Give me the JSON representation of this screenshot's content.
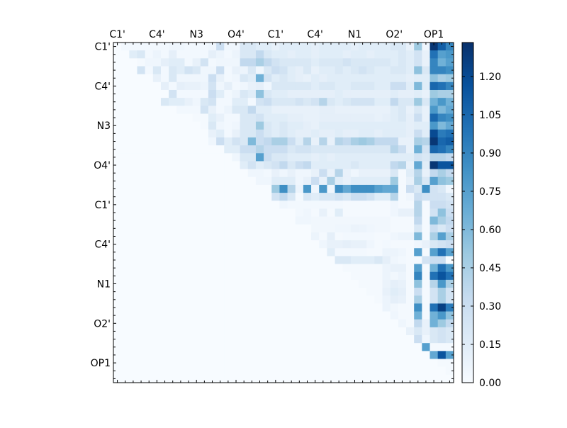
{
  "chart_data": {
    "type": "heatmap",
    "title": "",
    "xlabel": "",
    "ylabel": "",
    "n": 43,
    "x_tick_labels": [
      "C1'",
      "C4'",
      "N3",
      "O4'",
      "C1'",
      "C4'",
      "N1",
      "O2'",
      "OP1"
    ],
    "y_tick_labels": [
      "C1'",
      "C4'",
      "N3",
      "O4'",
      "C1'",
      "C4'",
      "N1",
      "O2'",
      "OP1"
    ],
    "tick_label_every": 5,
    "colormap": "Blues",
    "colormap_stops": [
      "#f7fbff",
      "#deebf7",
      "#c6dbef",
      "#9ecae1",
      "#6baed6",
      "#4292c6",
      "#2171b5",
      "#08519c",
      "#08306b"
    ],
    "vmin": 0,
    "vmax": 1.333,
    "colorbar_ticks": [
      "0.00",
      "0.15",
      "0.30",
      "0.45",
      "0.60",
      "0.75",
      "0.90",
      "1.05",
      "1.20"
    ],
    "rows_right_aligned": [
      [
        0,
        0.03,
        0.03,
        0.03,
        0.03,
        0.03,
        0.03,
        0.05,
        0.05,
        0.03,
        0.03,
        0.03,
        0.05,
        0.3,
        0.05,
        0.05,
        0.2,
        0.2,
        0.15,
        0.15,
        0.1,
        0.15,
        0.15,
        0.15,
        0.15,
        0.12,
        0.15,
        0.15,
        0.15,
        0.15,
        0.12,
        0.15,
        0.15,
        0.15,
        0.15,
        0.2,
        0.2,
        0.1,
        0.5,
        0.05,
        1.3,
        1.1,
        0.9
      ],
      [
        0.15,
        0.2,
        0.03,
        0.07,
        0.03,
        0.12,
        0.03,
        0.03,
        0.03,
        0.03,
        0.12,
        0.07,
        0.03,
        0.07,
        0.2,
        0.2,
        0.35,
        0.2,
        0.15,
        0.15,
        0.12,
        0.15,
        0.15,
        0.12,
        0.15,
        0.15,
        0.15,
        0.12,
        0.15,
        0.15,
        0.12,
        0.15,
        0.15,
        0.15,
        0.2,
        0.15,
        0.25,
        0.1,
        1.0,
        0.75,
        0.8
      ],
      [
        0.02,
        0.05,
        0.05,
        0.12,
        0.15,
        0.15,
        0.03,
        0.1,
        0.25,
        0.03,
        0.05,
        0.05,
        0.05,
        0.35,
        0.35,
        0.45,
        0.35,
        0.25,
        0.2,
        0.2,
        0.2,
        0.2,
        0.15,
        0.2,
        0.2,
        0.2,
        0.25,
        0.2,
        0.2,
        0.2,
        0.2,
        0.2,
        0.15,
        0.2,
        0.15,
        0.25,
        0.1,
        0.9,
        0.65,
        0.75
      ],
      [
        0.25,
        0.03,
        0.2,
        0.03,
        0.2,
        0.15,
        0.25,
        0.2,
        0.05,
        0.05,
        0.3,
        0.03,
        0.1,
        0.07,
        0.2,
        0.05,
        0.2,
        0.3,
        0.25,
        0.15,
        0.12,
        0.2,
        0.1,
        0.15,
        0.15,
        0.2,
        0.15,
        0.2,
        0.25,
        0.2,
        0.15,
        0.15,
        0.2,
        0.2,
        0.15,
        0.55,
        0.2,
        0.9,
        0.9,
        0.85
      ],
      [
        0.1,
        0.03,
        0.2,
        0.05,
        0.05,
        0.05,
        0.05,
        0.3,
        0.1,
        0.03,
        0.05,
        0.2,
        0.15,
        0.65,
        0.25,
        0.15,
        0.2,
        0.15,
        0.12,
        0.1,
        0.15,
        0.12,
        0.15,
        0.15,
        0.15,
        0.15,
        0.15,
        0.15,
        0.15,
        0.15,
        0.15,
        0.15,
        0.12,
        0.15,
        0.15,
        0.55,
        0.45,
        0.5
      ],
      [
        0.12,
        0.03,
        0.12,
        0.1,
        0.1,
        0.07,
        0.25,
        0.05,
        0.12,
        0.03,
        0.05,
        0.1,
        0.12,
        0.05,
        0.2,
        0.2,
        0.2,
        0.2,
        0.2,
        0.15,
        0.2,
        0.2,
        0.15,
        0.15,
        0.2,
        0.2,
        0.2,
        0.15,
        0.15,
        0.3,
        0.3,
        0.15,
        0.6,
        0.15,
        1.05,
        1.0,
        0.9
      ],
      [
        0.25,
        0.03,
        0.03,
        0.03,
        0.03,
        0.3,
        0.15,
        0.03,
        0.07,
        0.2,
        0.15,
        0.55,
        0.2,
        0.15,
        0.15,
        0.12,
        0.12,
        0.12,
        0.12,
        0.12,
        0.12,
        0.15,
        0.12,
        0.12,
        0.12,
        0.12,
        0.12,
        0.12,
        0.15,
        0.12,
        0.12,
        0.15,
        0.1,
        0.5,
        0.45,
        0.45
      ],
      [
        0.2,
        0.15,
        0.15,
        0.1,
        0.05,
        0.2,
        0.25,
        0.03,
        0.03,
        0.15,
        0.15,
        0.03,
        0.25,
        0.3,
        0.2,
        0.2,
        0.2,
        0.25,
        0.2,
        0.25,
        0.4,
        0.2,
        0.15,
        0.2,
        0.25,
        0.25,
        0.25,
        0.15,
        0.15,
        0.35,
        0.2,
        0.2,
        0.5,
        0.2,
        0.65,
        0.8,
        0.65
      ],
      [
        0.03,
        0.03,
        0.03,
        0.25,
        0.1,
        0.03,
        0.07,
        0.2,
        0.2,
        0.35,
        0.15,
        0.15,
        0.1,
        0.1,
        0.1,
        0.1,
        0.1,
        0.1,
        0.12,
        0.12,
        0.1,
        0.1,
        0.1,
        0.1,
        0.1,
        0.1,
        0.1,
        0.15,
        0.2,
        0.1,
        0.2,
        0.1,
        0.8,
        0.6,
        0.7
      ],
      [
        0.02,
        0.02,
        0.15,
        0.1,
        0.03,
        0.03,
        0.2,
        0.2,
        0.25,
        0.15,
        0.15,
        0.15,
        0.12,
        0.12,
        0.1,
        0.1,
        0.12,
        0.12,
        0.12,
        0.12,
        0.12,
        0.12,
        0.12,
        0.1,
        0.12,
        0.15,
        0.2,
        0.12,
        0.3,
        0.1,
        1.05,
        0.9,
        0.85
      ],
      [
        0.02,
        0.2,
        0.05,
        0.03,
        0.05,
        0.2,
        0.2,
        0.5,
        0.2,
        0.15,
        0.2,
        0.15,
        0.15,
        0.12,
        0.1,
        0.15,
        0.15,
        0.15,
        0.15,
        0.15,
        0.15,
        0.15,
        0.15,
        0.15,
        0.15,
        0.15,
        0.12,
        0.15,
        0.15,
        0.8,
        0.6,
        0.7
      ],
      [
        0.1,
        0.15,
        0.03,
        0.1,
        0.2,
        0.2,
        0.3,
        0.2,
        0.15,
        0.2,
        0.15,
        0.12,
        0.12,
        0.15,
        0.12,
        0.12,
        0.15,
        0.12,
        0.12,
        0.15,
        0.15,
        0.12,
        0.15,
        0.15,
        0.15,
        0.12,
        0.3,
        0.15,
        1.2,
        0.95,
        1.0
      ],
      [
        0.05,
        0.3,
        0.15,
        0.25,
        0.2,
        0.6,
        0.3,
        0.35,
        0.45,
        0.45,
        0.3,
        0.15,
        0.4,
        0.1,
        0.4,
        0.1,
        0.4,
        0.35,
        0.45,
        0.5,
        0.45,
        0.35,
        0.35,
        0.35,
        0.1,
        0.1,
        0.45,
        0.4,
        1.3,
        1.05,
        1.1
      ],
      [
        0.15,
        0.15,
        0.3,
        0.3,
        0.4,
        0.3,
        0.3,
        0.3,
        0.2,
        0.25,
        0.25,
        0.2,
        0.2,
        0.2,
        0.2,
        0.2,
        0.2,
        0.2,
        0.2,
        0.2,
        0.2,
        0.4,
        0.3,
        0.1,
        0.65,
        0.25,
        1.05,
        1.0,
        0.9
      ],
      [
        0.05,
        0.2,
        0.2,
        0.75,
        0.3,
        0.2,
        0.2,
        0.15,
        0.15,
        0.15,
        0.12,
        0.15,
        0.12,
        0.15,
        0.15,
        0.15,
        0.15,
        0.15,
        0.15,
        0.15,
        0.15,
        0.15,
        0.15,
        0.25,
        0.2,
        0.4,
        0.4,
        0.35
      ],
      [
        0.15,
        0.25,
        0.15,
        0.2,
        0.25,
        0.35,
        0.2,
        0.3,
        0.35,
        0.15,
        0.15,
        0.15,
        0.15,
        0.15,
        0.2,
        0.15,
        0.15,
        0.15,
        0.15,
        0.35,
        0.4,
        0.1,
        0.7,
        0.15,
        1.3,
        1.15,
        1.15
      ],
      [
        0.05,
        0.05,
        0.03,
        0.1,
        0.05,
        0.1,
        0.05,
        0.05,
        0.1,
        0.3,
        0.1,
        0.4,
        0.1,
        0.05,
        0.1,
        0.1,
        0.1,
        0.1,
        0.2,
        0.02,
        0.15,
        0.4,
        0.1,
        0.35,
        0.45,
        0.35
      ],
      [
        0.05,
        0.05,
        0.15,
        0.15,
        0.15,
        0.05,
        0.1,
        0.3,
        0.1,
        0.45,
        0.15,
        0.1,
        0.15,
        0.15,
        0.15,
        0.15,
        0.15,
        0.5,
        0.02,
        0.1,
        0.45,
        0.2,
        0.75,
        0.55,
        0.5
      ],
      [
        0,
        0.5,
        0.85,
        0.4,
        0.07,
        0.8,
        0.05,
        0.8,
        0.05,
        0.85,
        0.7,
        0.85,
        0.85,
        0.85,
        0.75,
        0.7,
        0.7,
        0.02,
        0.3,
        0.2,
        0.85,
        0.25,
        0.2,
        0.05
      ],
      [
        0.25,
        0.35,
        0.2,
        0.02,
        0.2,
        0.15,
        0.2,
        0.2,
        0.25,
        0.2,
        0.3,
        0.3,
        0.25,
        0.15,
        0.15,
        0.4,
        0.02,
        0.05,
        0.3,
        0.25,
        0.25,
        0.25,
        0.2
      ],
      [
        0.05,
        0.03,
        0.03,
        0.03,
        0.03,
        0.03,
        0.03,
        0.03,
        0.02,
        0.02,
        0.02,
        0.02,
        0.02,
        0.02,
        0.05,
        0.02,
        0.02,
        0.4,
        0.02,
        0.3,
        0.3,
        0.25
      ],
      [
        0.03,
        0.05,
        0.02,
        0.1,
        0.02,
        0.15,
        0.02,
        0.02,
        0.02,
        0.02,
        0.02,
        0.02,
        0.05,
        0.1,
        0.1,
        0.4,
        0.02,
        0.25,
        0.55,
        0.3
      ],
      [
        0.05,
        0.05,
        0.04,
        0.04,
        0.04,
        0.04,
        0.04,
        0.04,
        0.04,
        0.04,
        0.04,
        0.04,
        0.02,
        0.02,
        0.02,
        0.35,
        0.02,
        0.6,
        0.45,
        0.35
      ],
      [
        0.04,
        0.04,
        0.04,
        0.05,
        0.05,
        0.08,
        0.07,
        0.05,
        0.04,
        0.04,
        0.02,
        0.02,
        0.02,
        0.2,
        0.02,
        0.3,
        0.2,
        0.3
      ],
      [
        0.07,
        0.02,
        0.12,
        0.02,
        0.03,
        0.03,
        0.03,
        0.03,
        0.02,
        0.02,
        0.05,
        0.07,
        0.07,
        0.6,
        0.02,
        0.45,
        0.75,
        0.45
      ],
      [
        0.05,
        0.1,
        0.1,
        0.12,
        0.1,
        0.1,
        0.05,
        0.02,
        0.03,
        0.02,
        0.02,
        0.02,
        0.05,
        0.1,
        0.2,
        0.25,
        0.3
      ],
      [
        0.15,
        0.03,
        0.03,
        0.03,
        0.03,
        0.02,
        0.02,
        0.07,
        0.07,
        0.05,
        0.02,
        0.75,
        0.02,
        0.75,
        1.0,
        0.75
      ],
      [
        0.2,
        0.2,
        0.15,
        0.15,
        0.15,
        0.2,
        0.12,
        0.05,
        0.03,
        0.02,
        0.02,
        0.25,
        0.3,
        0.3,
        0
      ],
      [
        0.02,
        0.02,
        0.02,
        0.02,
        0.02,
        0.07,
        0.1,
        0.1,
        0.02,
        0.75,
        0.02,
        0.65,
        1.0,
        0.8
      ],
      [
        0.02,
        0.02,
        0.02,
        0.02,
        0.07,
        0.04,
        0.07,
        0.02,
        0.9,
        0.02,
        1.0,
        1.15,
        1.0
      ],
      [
        0.02,
        0.02,
        0.02,
        0.08,
        0.12,
        0.1,
        0.02,
        0.55,
        0.02,
        0.4,
        0.8,
        0.45
      ],
      [
        0.02,
        0.02,
        0.1,
        0.15,
        0.12,
        0.02,
        0.3,
        0.02,
        0.25,
        0.45,
        0.25
      ],
      [
        0.02,
        0.07,
        0.12,
        0.1,
        0.02,
        0.45,
        0.02,
        0.25,
        0.45,
        0.25
      ],
      [
        0.07,
        0.04,
        0.02,
        0.02,
        0.85,
        0.02,
        1.0,
        1.25,
        0.95
      ],
      [
        0.05,
        0.02,
        0.02,
        0.65,
        0.02,
        0.65,
        0.8,
        0.55
      ],
      [
        0.05,
        0.02,
        0.35,
        0.1,
        0.65,
        0.5,
        0.35
      ],
      [
        0.1,
        0.2,
        0.1,
        0.2,
        0.25,
        0.2
      ],
      [
        0.3,
        0.05,
        0.2,
        0.25,
        0.2
      ],
      [
        0.75,
        0.02,
        0.02,
        0.02
      ],
      [
        0.7,
        1.15,
        0.75
      ],
      [
        0.02,
        0.02
      ],
      [
        0.02
      ],
      []
    ]
  }
}
